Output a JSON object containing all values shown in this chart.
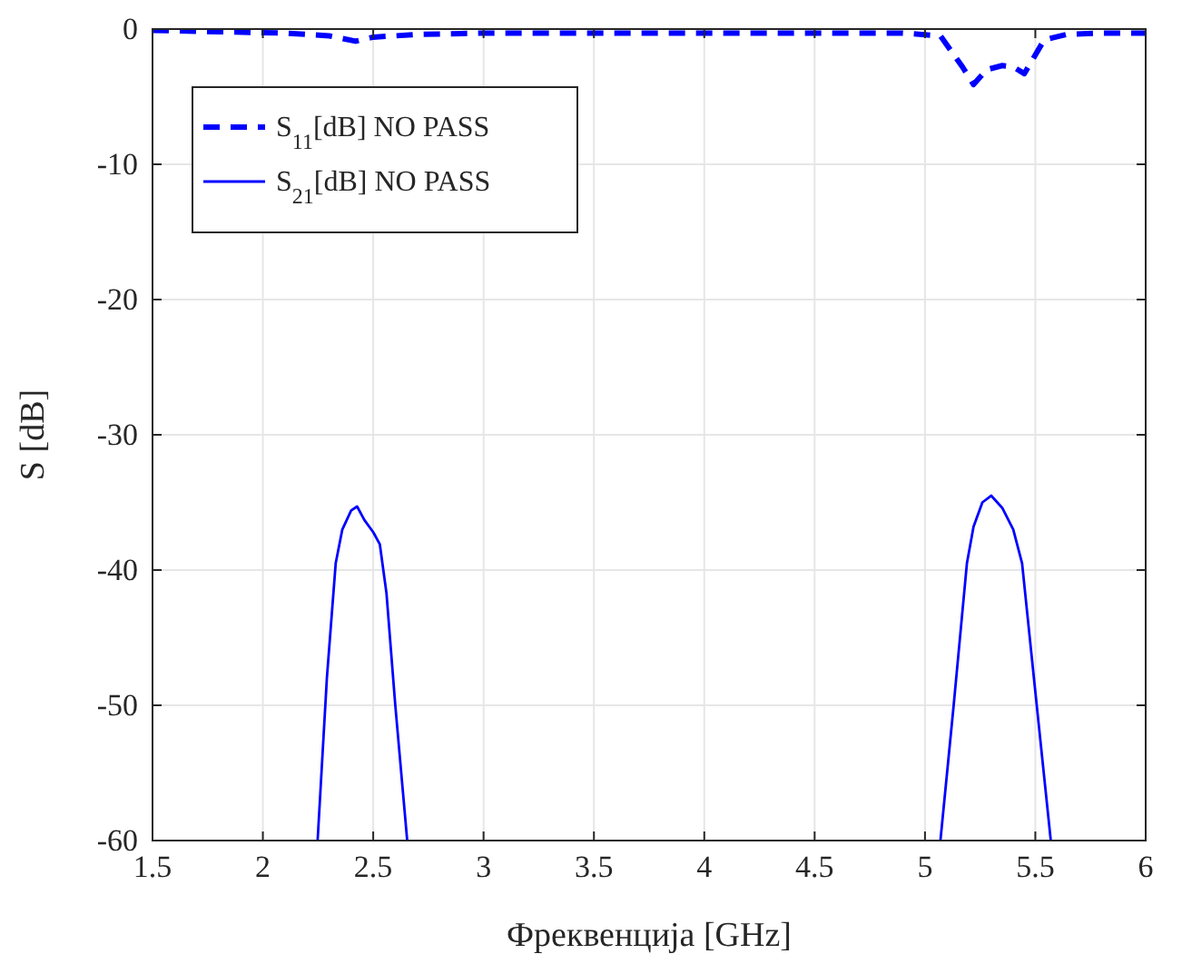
{
  "chart_data": {
    "type": "line",
    "xlabel": "Фреквенција [GHz]",
    "ylabel": "S [dB]",
    "xlim": [
      1.5,
      6
    ],
    "xticks": [
      1.5,
      2,
      2.5,
      3,
      3.5,
      4,
      4.5,
      5,
      5.5,
      6
    ],
    "ylim": [
      -60,
      0
    ],
    "yticks": [
      -60,
      -50,
      -40,
      -30,
      -20,
      -10,
      0
    ],
    "grid": true,
    "legend": "top left",
    "series": [
      {
        "name": "S$_{11}$[dB] NO PASS",
        "color": "#0000ff",
        "line_style": "dashed",
        "x": [
          1.5,
          1.8,
          2.1,
          2.3,
          2.42,
          2.5,
          2.7,
          3,
          3.5,
          4,
          4.5,
          4.9,
          5.07,
          5.17,
          5.22,
          5.28,
          5.35,
          5.4,
          5.45,
          5.54,
          5.64,
          5.8,
          6
        ],
        "values": [
          -0.1,
          -0.2,
          -0.3,
          -0.5,
          -0.9,
          -0.6,
          -0.4,
          -0.3,
          -0.3,
          -0.3,
          -0.3,
          -0.3,
          -0.5,
          -2.8,
          -4.1,
          -3.0,
          -2.7,
          -2.8,
          -3.3,
          -0.8,
          -0.4,
          -0.3,
          -0.3
        ]
      },
      {
        "name": "S$_{21}$[dB] NO PASS",
        "color": "#0000ff",
        "line_style": "solid",
        "x": [
          2.248,
          2.29,
          2.33,
          2.36,
          2.4,
          2.427,
          2.46,
          2.5,
          2.53,
          2.56,
          2.6,
          2.654
        ],
        "values": [
          -60,
          -48,
          -39.5,
          -37,
          -35.6,
          -35.3,
          -36.3,
          -37.2,
          -38.1,
          -41.7,
          -50,
          -60
        ]
      },
      {
        "name": null,
        "color": "#0000ff",
        "line_style": "solid",
        "x": [
          5.07,
          5.13,
          5.19,
          5.22,
          5.26,
          5.3,
          5.35,
          5.4,
          5.44,
          5.5,
          5.57
        ],
        "values": [
          -60,
          -50,
          -39.5,
          -36.8,
          -35,
          -34.5,
          -35.4,
          -37,
          -39.5,
          -49,
          -60
        ]
      }
    ]
  }
}
